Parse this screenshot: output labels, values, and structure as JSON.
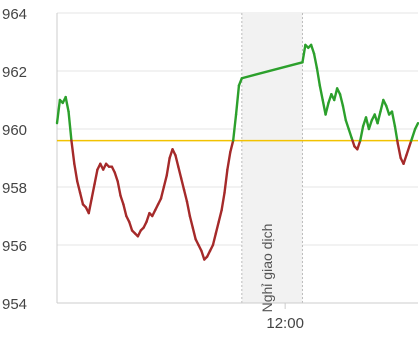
{
  "chart_data": {
    "type": "line",
    "title": "",
    "xlabel": "",
    "ylabel": "",
    "reference_value": 959.6,
    "ylim": [
      954,
      964
    ],
    "y_ticks": [
      954,
      956,
      958,
      960,
      962,
      964
    ],
    "y_tick_labels": [
      "954",
      "956",
      "958",
      "960",
      "962",
      "964"
    ],
    "x_tick_labels": [
      "12:00"
    ],
    "break_label": "Nghỉ giao dịch",
    "colors": {
      "up": "#2ca02c",
      "down": "#a52a2a",
      "reference": "#f2c200",
      "break_band": "#f2f2f2",
      "grid": "#e6e6e6",
      "axis_text": "#444444"
    },
    "series": [
      {
        "session": "morning",
        "points": [
          [
            0,
            960.2
          ],
          [
            1,
            961.0
          ],
          [
            2,
            960.9
          ],
          [
            3,
            961.1
          ],
          [
            4,
            960.6
          ],
          [
            5,
            959.6
          ],
          [
            6,
            958.8
          ],
          [
            7,
            958.2
          ],
          [
            8,
            957.8
          ],
          [
            9,
            957.4
          ],
          [
            10,
            957.3
          ],
          [
            11,
            957.1
          ],
          [
            12,
            957.6
          ],
          [
            13,
            958.1
          ],
          [
            14,
            958.6
          ],
          [
            15,
            958.8
          ],
          [
            16,
            958.6
          ],
          [
            17,
            958.8
          ],
          [
            18,
            958.7
          ],
          [
            19,
            958.7
          ],
          [
            20,
            958.5
          ],
          [
            21,
            958.2
          ],
          [
            22,
            957.7
          ],
          [
            23,
            957.4
          ],
          [
            24,
            957.0
          ],
          [
            25,
            956.8
          ],
          [
            26,
            956.5
          ],
          [
            27,
            956.4
          ],
          [
            28,
            956.3
          ],
          [
            29,
            956.5
          ],
          [
            30,
            956.6
          ],
          [
            31,
            956.8
          ],
          [
            32,
            957.1
          ],
          [
            33,
            957.0
          ],
          [
            34,
            957.2
          ],
          [
            35,
            957.4
          ],
          [
            36,
            957.6
          ],
          [
            37,
            958.0
          ],
          [
            38,
            958.4
          ],
          [
            39,
            959.0
          ],
          [
            40,
            959.3
          ],
          [
            41,
            959.1
          ],
          [
            42,
            958.7
          ],
          [
            43,
            958.3
          ],
          [
            44,
            957.9
          ],
          [
            45,
            957.5
          ],
          [
            46,
            957.0
          ],
          [
            47,
            956.6
          ],
          [
            48,
            956.2
          ],
          [
            49,
            956.0
          ],
          [
            50,
            955.8
          ],
          [
            51,
            955.5
          ],
          [
            52,
            955.6
          ],
          [
            53,
            955.8
          ],
          [
            54,
            956.0
          ],
          [
            55,
            956.4
          ],
          [
            56,
            956.8
          ],
          [
            57,
            957.2
          ],
          [
            58,
            957.8
          ],
          [
            59,
            958.6
          ],
          [
            60,
            959.2
          ],
          [
            61,
            959.6
          ],
          [
            62,
            960.5
          ],
          [
            63,
            961.5
          ],
          [
            64,
            961.75
          ]
        ]
      },
      {
        "session": "break",
        "points": [
          [
            64,
            961.75
          ],
          [
            85,
            962.3
          ]
        ]
      },
      {
        "session": "afternoon",
        "points": [
          [
            85,
            962.3
          ],
          [
            86,
            962.9
          ],
          [
            87,
            962.8
          ],
          [
            88,
            962.9
          ],
          [
            89,
            962.6
          ],
          [
            90,
            962.1
          ],
          [
            91,
            961.5
          ],
          [
            92,
            961.0
          ],
          [
            93,
            960.5
          ],
          [
            94,
            960.9
          ],
          [
            95,
            961.2
          ],
          [
            96,
            961.0
          ],
          [
            97,
            961.4
          ],
          [
            98,
            961.2
          ],
          [
            99,
            960.8
          ],
          [
            100,
            960.3
          ],
          [
            101,
            960.0
          ],
          [
            102,
            959.7
          ],
          [
            103,
            959.4
          ],
          [
            104,
            959.3
          ],
          [
            105,
            959.6
          ],
          [
            106,
            960.1
          ],
          [
            107,
            960.4
          ],
          [
            108,
            960.0
          ],
          [
            109,
            960.3
          ],
          [
            110,
            960.5
          ],
          [
            111,
            960.2
          ],
          [
            112,
            960.6
          ],
          [
            113,
            961.0
          ],
          [
            114,
            960.8
          ],
          [
            115,
            960.5
          ],
          [
            116,
            960.6
          ],
          [
            117,
            960.1
          ],
          [
            118,
            959.5
          ],
          [
            119,
            959.0
          ],
          [
            120,
            958.8
          ],
          [
            121,
            959.1
          ],
          [
            122,
            959.4
          ],
          [
            123,
            959.7
          ],
          [
            124,
            960.0
          ],
          [
            125,
            960.2
          ]
        ]
      }
    ],
    "x_range": [
      0,
      125
    ],
    "break_x_range": [
      64,
      85
    ],
    "x_tick_positions": [
      79
    ]
  }
}
